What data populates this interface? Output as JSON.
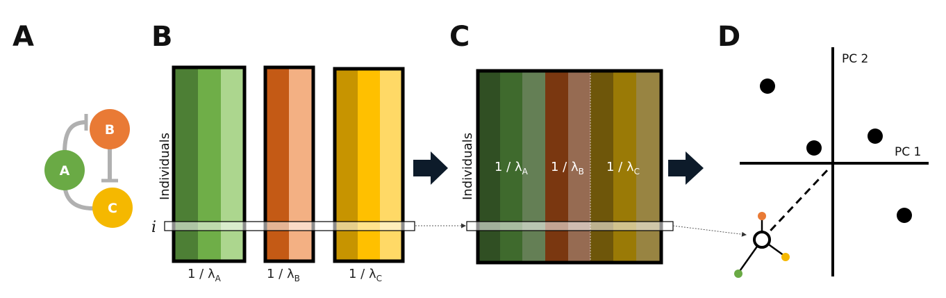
{
  "panels": {
    "a": "A",
    "b": "B",
    "c": "C",
    "d": "D"
  },
  "network": {
    "nodes": [
      {
        "label": "A",
        "color": "#6aaa45"
      },
      {
        "label": "B",
        "color": "#e97a35"
      },
      {
        "label": "C",
        "color": "#f5b800"
      }
    ],
    "edge_color": "#b0b0b0"
  },
  "matrices": {
    "ylabel": "Individuals",
    "row_label": "i",
    "blocks": [
      {
        "gene": "A",
        "prefix": "1 / λ",
        "sub": "A",
        "shades": [
          "#4d7f35",
          "#6fae48",
          "#acd68e"
        ]
      },
      {
        "gene": "B",
        "prefix": "1 / λ",
        "sub": "B",
        "shades": [
          "#c45a15",
          "#f3b083"
        ]
      },
      {
        "gene": "C",
        "prefix": "1 / λ",
        "sub": "C",
        "shades": [
          "#c79400",
          "#ffc000",
          "#ffd966"
        ]
      }
    ]
  },
  "combined": {
    "ylabel": "Individuals",
    "shades": [
      "#304f23",
      "#3f6a2d",
      "#647f55",
      "#7a3710",
      "#966b52",
      "#6e560a",
      "#9a7a06",
      "#988442"
    ],
    "labels": [
      {
        "prefix": "1 / λ",
        "sub": "A"
      },
      {
        "prefix": "1 / λ",
        "sub": "B"
      },
      {
        "prefix": "1 / λ",
        "sub": "C"
      }
    ]
  },
  "pca": {
    "x_axis_label": "PC 1",
    "y_axis_label": "PC 2",
    "highlight_colors": [
      "#6aaa45",
      "#e97a35",
      "#f5b800"
    ]
  }
}
